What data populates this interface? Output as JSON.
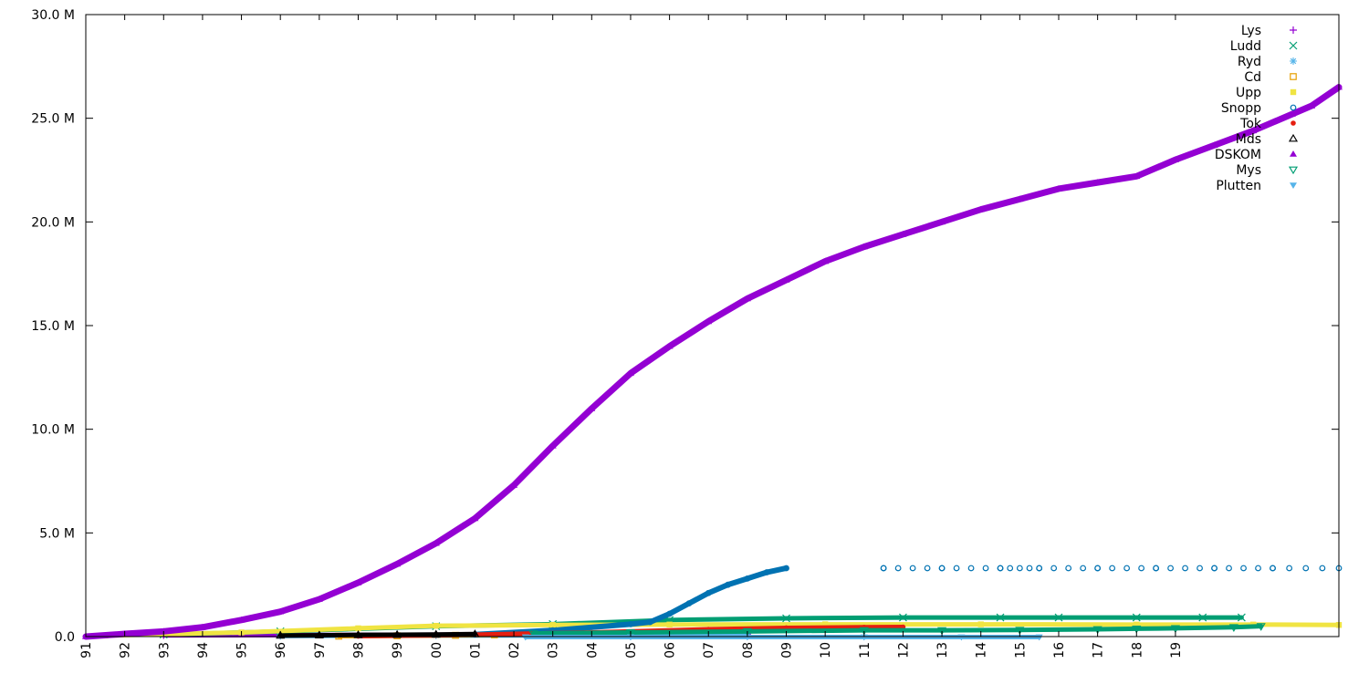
{
  "chart_data": {
    "type": "scatter",
    "title": "",
    "xlabel": "",
    "ylabel": "",
    "x_ticks": [
      "91",
      "92",
      "93",
      "94",
      "95",
      "96",
      "97",
      "98",
      "99",
      "00",
      "01",
      "02",
      "03",
      "04",
      "05",
      "06",
      "07",
      "08",
      "09",
      "10",
      "11",
      "12",
      "13",
      "14",
      "15",
      "16",
      "17",
      "18",
      "19"
    ],
    "y_ticks": [
      "0.0",
      "5.0 M",
      "10.0 M",
      "15.0 M",
      "20.0 M",
      "25.0 M",
      "30.0 M"
    ],
    "xlim": [
      1991.0,
      2023.2
    ],
    "ylim": [
      0,
      30000000
    ],
    "grid": false,
    "legend_position": "top-right",
    "series": [
      {
        "name": "Lys",
        "color": "#9400d3",
        "marker": "plus",
        "points": [
          [
            1993.0,
            60000
          ],
          [
            1998.0,
            80000
          ],
          [
            2003.0,
            100000
          ],
          [
            2008.0,
            120000
          ]
        ]
      },
      {
        "name": "Ludd",
        "color": "#009e73",
        "marker": "x",
        "points": [
          [
            1993.0,
            100000
          ],
          [
            1996.0,
            250000
          ],
          [
            2000.0,
            500000
          ],
          [
            2003.0,
            600000
          ],
          [
            2006.0,
            800000
          ],
          [
            2009.0,
            880000
          ],
          [
            2012.0,
            920000
          ],
          [
            2014.5,
            920000
          ],
          [
            2016.0,
            920000
          ],
          [
            2018.0,
            920000
          ],
          [
            2019.7,
            920000
          ],
          [
            2020.7,
            920000
          ]
        ]
      },
      {
        "name": "Ryd",
        "color": "#56b4e9",
        "marker": "asterisk",
        "points": [
          [
            1996.0,
            30000
          ],
          [
            2000.0,
            50000
          ],
          [
            2004.0,
            60000
          ],
          [
            2008.0,
            70000
          ]
        ]
      },
      {
        "name": "Cd",
        "color": "#e69f00",
        "marker": "open-square",
        "points": [
          [
            1997.5,
            20000
          ],
          [
            1999.0,
            40000
          ],
          [
            2000.5,
            60000
          ],
          [
            2001.5,
            80000
          ]
        ]
      },
      {
        "name": "Upp",
        "color": "#f0e442",
        "marker": "filled-square",
        "points": [
          [
            1991.5,
            50000
          ],
          [
            1995.0,
            200000
          ],
          [
            1998.0,
            400000
          ],
          [
            2000.0,
            520000
          ],
          [
            2003.0,
            560000
          ],
          [
            2006.0,
            580000
          ],
          [
            2010.0,
            590000
          ],
          [
            2014.0,
            590000
          ],
          [
            2018.0,
            580000
          ],
          [
            2021.0,
            580000
          ],
          [
            2023.2,
            560000
          ]
        ]
      },
      {
        "name": "Snopp",
        "color": "#0072b2",
        "marker": "open-circle",
        "points": [
          [
            2001.0,
            100000
          ],
          [
            2003.0,
            300000
          ],
          [
            2005.0,
            600000
          ],
          [
            2005.5,
            700000
          ],
          [
            2006.0,
            1100000
          ],
          [
            2006.5,
            1600000
          ],
          [
            2007.0,
            2100000
          ],
          [
            2007.5,
            2500000
          ],
          [
            2008.0,
            2800000
          ],
          [
            2008.5,
            3100000
          ],
          [
            2009.0,
            3300000
          ],
          [
            2011.5,
            3300000
          ],
          [
            2013.0,
            3300000
          ],
          [
            2014.5,
            3300000
          ],
          [
            2015.5,
            3300000
          ],
          [
            2017.0,
            3300000
          ],
          [
            2018.5,
            3300000
          ],
          [
            2020.0,
            3300000
          ],
          [
            2021.5,
            3300000
          ],
          [
            2023.2,
            3300000
          ]
        ]
      },
      {
        "name": "Tok",
        "color": "#e51e10",
        "marker": "filled-circle",
        "points": [
          [
            1998.0,
            20000
          ],
          [
            2000.0,
            60000
          ],
          [
            2004.0,
            200000
          ],
          [
            2007.0,
            350000
          ],
          [
            2009.0,
            420000
          ],
          [
            2011.0,
            450000
          ],
          [
            2012.0,
            460000
          ]
        ]
      },
      {
        "name": "Mds",
        "color": "#000000",
        "marker": "open-triangle",
        "points": [
          [
            1996.0,
            50000
          ],
          [
            1997.0,
            60000
          ],
          [
            1998.0,
            80000
          ],
          [
            1999.0,
            90000
          ],
          [
            2000.0,
            100000
          ],
          [
            2001.0,
            120000
          ]
        ]
      },
      {
        "name": "DSKOM",
        "color": "#9400d3",
        "marker": "filled-triangle",
        "points": [
          [
            1991.0,
            0
          ],
          [
            1992.0,
            130000
          ],
          [
            1993.0,
            250000
          ],
          [
            1994.0,
            450000
          ],
          [
            1995.0,
            800000
          ],
          [
            1996.0,
            1200000
          ],
          [
            1997.0,
            1800000
          ],
          [
            1998.0,
            2600000
          ],
          [
            1999.0,
            3500000
          ],
          [
            2000.0,
            4500000
          ],
          [
            2001.0,
            5700000
          ],
          [
            2002.0,
            7300000
          ],
          [
            2003.0,
            9200000
          ],
          [
            2004.0,
            11000000
          ],
          [
            2005.0,
            12700000
          ],
          [
            2006.0,
            14000000
          ],
          [
            2007.0,
            15200000
          ],
          [
            2008.0,
            16300000
          ],
          [
            2009.0,
            17200000
          ],
          [
            2010.0,
            18100000
          ],
          [
            2011.0,
            18800000
          ],
          [
            2012.0,
            19400000
          ],
          [
            2013.0,
            20000000
          ],
          [
            2014.0,
            20600000
          ],
          [
            2015.0,
            21100000
          ],
          [
            2016.0,
            21600000
          ],
          [
            2017.0,
            21900000
          ],
          [
            2018.0,
            22200000
          ],
          [
            2019.0,
            23000000
          ],
          [
            2020.0,
            23700000
          ],
          [
            2021.0,
            24400000
          ],
          [
            2022.0,
            25200000
          ],
          [
            2022.5,
            25600000
          ],
          [
            2023.2,
            26500000
          ]
        ]
      },
      {
        "name": "Mys",
        "color": "#009e73",
        "marker": "open-triangle-down",
        "points": [
          [
            2002.5,
            150000
          ],
          [
            2005.0,
            200000
          ],
          [
            2008.0,
            250000
          ],
          [
            2011.0,
            300000
          ],
          [
            2013.0,
            300000
          ],
          [
            2015.0,
            320000
          ],
          [
            2017.0,
            350000
          ],
          [
            2018.0,
            380000
          ],
          [
            2019.0,
            400000
          ],
          [
            2020.5,
            450000
          ],
          [
            2021.2,
            500000
          ]
        ]
      },
      {
        "name": "Plutten",
        "color": "#56b4e9",
        "marker": "filled-triangle-down",
        "points": [
          [
            2002.3,
            -20000
          ],
          [
            2005.0,
            -20000
          ],
          [
            2008.0,
            -20000
          ],
          [
            2011.0,
            -20000
          ],
          [
            2013.5,
            -20000
          ],
          [
            2015.5,
            -20000
          ]
        ]
      }
    ]
  }
}
